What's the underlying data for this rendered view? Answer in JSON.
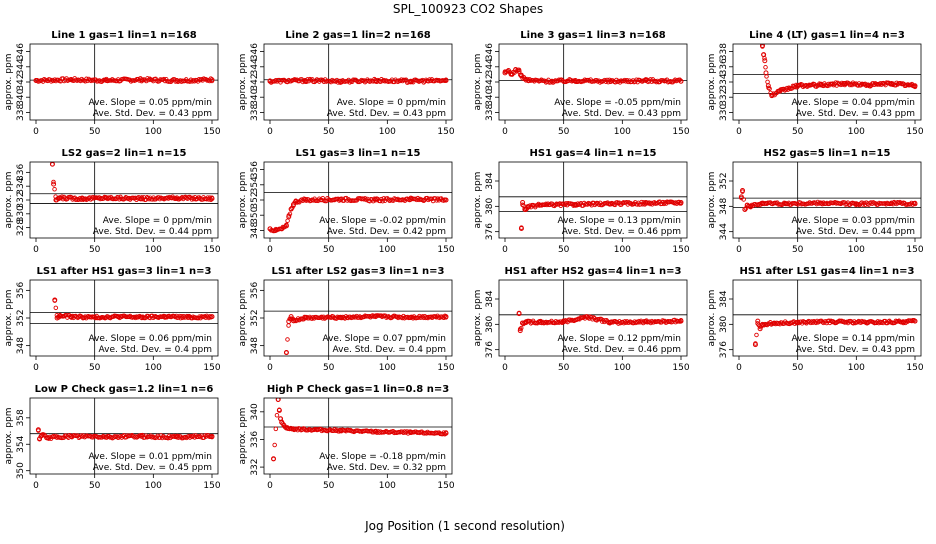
{
  "figure": {
    "title": "SPL_100923  CO2 Shapes",
    "xlabel": "Jog Position (1 second resolution)"
  },
  "colors": {
    "points": "#e00000",
    "axes": "#000000"
  },
  "chart_data": [
    {
      "type": "scatter",
      "title": "Line 1 gas=1 lin=1 n=168",
      "ylabel": "approx. ppm",
      "xlim": [
        0,
        150
      ],
      "ylim": [
        337,
        347
      ],
      "xticks": [
        0,
        50,
        100,
        150
      ],
      "yticks": [
        338,
        340,
        342,
        344,
        346
      ],
      "hlines": [
        342.25
      ],
      "vline": 50,
      "slope_label": "Ave. Slope = ",
      "slope": "0.05",
      "slope_unit": "ppm/min",
      "sd_label": "Ave. Std. Dev. = ",
      "sd": "0.43",
      "sd_unit": "ppm",
      "series": [
        {
          "x": [
            0,
            30,
            60,
            90,
            120,
            150
          ],
          "y": [
            342.2,
            342.3,
            342.2,
            342.3,
            342.2,
            342.3
          ]
        }
      ]
    },
    {
      "type": "scatter",
      "title": "Line 2 gas=1 lin=2 n=168",
      "ylabel": "approx. ppm",
      "xlim": [
        0,
        150
      ],
      "ylim": [
        337,
        347
      ],
      "xticks": [
        0,
        50,
        100,
        150
      ],
      "yticks": [
        338,
        340,
        342,
        344,
        346
      ],
      "hlines": [
        342.3
      ],
      "vline": 50,
      "slope_label": "Ave. Slope = ",
      "slope": "0",
      "slope_unit": "ppm/min",
      "sd_label": "Ave. Std. Dev. = ",
      "sd": "0.43",
      "sd_unit": "ppm",
      "series": [
        {
          "x": [
            0,
            30,
            60,
            90,
            120,
            150
          ],
          "y": [
            342.1,
            342.2,
            342.1,
            342.2,
            342.1,
            342.2
          ]
        }
      ]
    },
    {
      "type": "scatter",
      "title": "Line 3 gas=1 lin=3 n=168",
      "ylabel": "approx. ppm",
      "xlim": [
        0,
        150
      ],
      "ylim": [
        337,
        347
      ],
      "xticks": [
        0,
        50,
        100,
        150
      ],
      "yticks": [
        338,
        340,
        342,
        344,
        346
      ],
      "hlines": [
        342.2
      ],
      "vline": 50,
      "slope_label": "Ave. Slope = ",
      "slope": "-0.05",
      "slope_unit": "ppm/min",
      "sd_label": "Ave. Std. Dev. = ",
      "sd": "0.43",
      "sd_unit": "ppm",
      "series": [
        {
          "x": [
            0,
            3,
            6,
            9,
            12,
            14,
            17,
            20,
            40,
            60,
            90,
            120,
            150
          ],
          "y": [
            343.2,
            343.5,
            343.0,
            343.6,
            343.4,
            342.8,
            342.4,
            342.2,
            342.1,
            342.2,
            342.1,
            342.2,
            342.1
          ]
        }
      ]
    },
    {
      "type": "scatter",
      "title": "Line 4 (LT) gas=1 lin=4 n=3",
      "ylabel": "approx. ppm",
      "xlim": [
        0,
        150
      ],
      "ylim": [
        329,
        339
      ],
      "xticks": [
        0,
        50,
        100,
        150
      ],
      "yticks": [
        330,
        332,
        334,
        336,
        338
      ],
      "hlines": [
        335.0,
        332.5
      ],
      "vline": 50,
      "slope_label": "Ave. Slope = ",
      "slope": "0.04",
      "slope_unit": "ppm/min",
      "sd_label": "Ave. Std. Dev. = ",
      "sd": "0.43",
      "sd_unit": "ppm",
      "series": [
        {
          "x": [
            20,
            21,
            22,
            23,
            25,
            28,
            35,
            50,
            70,
            90,
            110,
            130,
            150
          ],
          "y": [
            338.8,
            337.6,
            336.8,
            335.2,
            333.5,
            332.2,
            332.8,
            333.5,
            333.6,
            333.8,
            333.6,
            333.8,
            333.5
          ]
        }
      ]
    },
    {
      "type": "scatter",
      "title": "LS2 gas=2 lin=1 n=15",
      "ylabel": "approx. ppm",
      "xlim": [
        0,
        150
      ],
      "ylim": [
        326.5,
        337.5
      ],
      "xticks": [
        0,
        50,
        100,
        150
      ],
      "yticks": [
        328,
        330,
        332,
        334,
        336
      ],
      "hlines": [
        332.9,
        331.5
      ],
      "vline": 50,
      "slope_label": "Ave. Slope = ",
      "slope": "0",
      "slope_unit": "ppm/min",
      "sd_label": "Ave. Std. Dev. = ",
      "sd": "0.44",
      "sd_unit": "ppm",
      "series": [
        {
          "x": [
            14,
            15,
            17,
            20,
            40,
            60,
            90,
            120,
            150
          ],
          "y": [
            337.2,
            334.3,
            332.0,
            332.3,
            332.2,
            332.3,
            332.2,
            332.3,
            332.2
          ]
        }
      ]
    },
    {
      "type": "scatter",
      "title": "LS1 gas=3 lin=1 n=15",
      "ylabel": "approx. ppm",
      "xlim": [
        0,
        150
      ],
      "ylim": [
        347,
        357
      ],
      "xticks": [
        0,
        50,
        100,
        150
      ],
      "yticks": [
        348,
        350,
        352,
        354,
        356
      ],
      "hlines": [
        353.0
      ],
      "vline": 50,
      "slope_label": "Ave. Slope = ",
      "slope": "-0.02",
      "slope_unit": "ppm/min",
      "sd_label": "Ave. Std. Dev. = ",
      "sd": "0.42",
      "sd_unit": "ppm",
      "series": [
        {
          "x": [
            0,
            5,
            10,
            14,
            16,
            18,
            20,
            22,
            30,
            60,
            90,
            120,
            150
          ],
          "y": [
            348.2,
            348.0,
            348.2,
            348.6,
            349.8,
            350.8,
            351.4,
            351.8,
            352.0,
            352.1,
            352.0,
            352.1,
            352.0
          ]
        }
      ]
    },
    {
      "type": "scatter",
      "title": "HS1 gas=4 lin=1 n=15",
      "ylabel": "approx. ppm",
      "xlim": [
        0,
        150
      ],
      "ylim": [
        375,
        387
      ],
      "xticks": [
        0,
        50,
        100,
        150
      ],
      "yticks": [
        376,
        380,
        384
      ],
      "hlines": [
        381.5,
        379.2
      ],
      "vline": 50,
      "slope_label": "Ave. Slope = ",
      "slope": "0.13",
      "slope_unit": "ppm/min",
      "sd_label": "Ave. Std. Dev. = ",
      "sd": "0.46",
      "sd_unit": "ppm",
      "series": [
        {
          "x": [
            14,
            15,
            17,
            20,
            30,
            60,
            90,
            120,
            150
          ],
          "y": [
            376.5,
            380.6,
            379.5,
            379.9,
            380.2,
            380.3,
            380.4,
            380.5,
            380.6
          ]
        }
      ]
    },
    {
      "type": "scatter",
      "title": "HS2 gas=5 lin=1 n=15",
      "ylabel": "approx. ppm",
      "xlim": [
        0,
        150
      ],
      "ylim": [
        343,
        355
      ],
      "xticks": [
        0,
        50,
        100,
        150
      ],
      "yticks": [
        344,
        348,
        352
      ],
      "hlines": [
        349.3,
        347.8
      ],
      "vline": 50,
      "slope_label": "Ave. Slope = ",
      "slope": "0.03",
      "slope_unit": "ppm/min",
      "sd_label": "Ave. Std. Dev. = ",
      "sd": "0.44",
      "sd_unit": "ppm",
      "series": [
        {
          "x": [
            2,
            3,
            5,
            7,
            10,
            20,
            40,
            70,
            100,
            130,
            150
          ],
          "y": [
            349.5,
            350.5,
            347.5,
            348.2,
            348.0,
            348.5,
            348.4,
            348.5,
            348.4,
            348.5,
            348.4
          ]
        }
      ]
    },
    {
      "type": "scatter",
      "title": "LS1 after HS1 gas=3 lin=1 n=3",
      "ylabel": "approx. ppm",
      "xlim": [
        0,
        150
      ],
      "ylim": [
        346.5,
        357.5
      ],
      "xticks": [
        0,
        50,
        100,
        150
      ],
      "yticks": [
        348,
        352,
        356
      ],
      "hlines": [
        352.8,
        351.2
      ],
      "vline": 50,
      "slope_label": "Ave. Slope = ",
      "slope": "0.06",
      "slope_unit": "ppm/min",
      "sd_label": "Ave. Std. Dev. = ",
      "sd": "0.4",
      "sd_unit": "ppm",
      "series": [
        {
          "x": [
            16,
            18,
            20,
            30,
            50,
            70,
            90,
            110,
            130,
            150
          ],
          "y": [
            354.6,
            352.0,
            352.3,
            352.2,
            352.1,
            352.2,
            352.1,
            352.2,
            352.1,
            352.2
          ]
        }
      ]
    },
    {
      "type": "scatter",
      "title": "LS1 after LS2 gas=3 lin=1 n=3",
      "ylabel": "approx. ppm",
      "xlim": [
        0,
        150
      ],
      "ylim": [
        346.5,
        357.5
      ],
      "xticks": [
        0,
        50,
        100,
        150
      ],
      "yticks": [
        348,
        352,
        356
      ],
      "hlines": [
        353.0
      ],
      "vline": 50,
      "slope_label": "Ave. Slope = ",
      "slope": "0.07",
      "slope_unit": "ppm/min",
      "sd_label": "Ave. Std. Dev. = ",
      "sd": "0.4",
      "sd_unit": "ppm",
      "series": [
        {
          "x": [
            14,
            16,
            18,
            20,
            30,
            60,
            90,
            120,
            150
          ],
          "y": [
            347.0,
            351.5,
            352.2,
            351.6,
            352.0,
            352.1,
            352.2,
            352.1,
            352.2
          ]
        }
      ]
    },
    {
      "type": "scatter",
      "title": "HS1 after HS2 gas=4 lin=1 n=3",
      "ylabel": "approx. ppm",
      "xlim": [
        0,
        150
      ],
      "ylim": [
        375,
        387
      ],
      "xticks": [
        0,
        50,
        100,
        150
      ],
      "yticks": [
        376,
        380,
        384
      ],
      "hlines": [
        381.5
      ],
      "vline": 50,
      "slope_label": "Ave. Slope = ",
      "slope": "0.12",
      "slope_unit": "ppm/min",
      "sd_label": "Ave. Std. Dev. = ",
      "sd": "0.46",
      "sd_unit": "ppm",
      "series": [
        {
          "x": [
            12,
            13,
            15,
            18,
            30,
            50,
            70,
            90,
            120,
            150
          ],
          "y": [
            381.7,
            379.0,
            380.2,
            380.4,
            380.3,
            380.4,
            381.2,
            380.3,
            380.4,
            380.5
          ]
        }
      ]
    },
    {
      "type": "scatter",
      "title": "HS1 after LS1 gas=4 lin=1 n=3",
      "ylabel": "approx. ppm",
      "xlim": [
        0,
        150
      ],
      "ylim": [
        375,
        387
      ],
      "xticks": [
        0,
        50,
        100,
        150
      ],
      "yticks": [
        376,
        380,
        384
      ],
      "hlines": [
        381.5
      ],
      "vline": 50,
      "slope_label": "Ave. Slope = ",
      "slope": "0.14",
      "slope_unit": "ppm/min",
      "sd_label": "Ave. Std. Dev. = ",
      "sd": "0.43",
      "sd_unit": "ppm",
      "series": [
        {
          "x": [
            14,
            16,
            18,
            20,
            30,
            50,
            80,
            110,
            140,
            150
          ],
          "y": [
            376.8,
            380.5,
            379.3,
            380.0,
            380.2,
            380.3,
            380.4,
            380.3,
            380.4,
            380.5
          ]
        }
      ]
    },
    {
      "type": "scatter",
      "title": "Low P Check gas=1.2 lin=1 n=6",
      "ylabel": "approx. ppm",
      "xlim": [
        0,
        150
      ],
      "ylim": [
        349.5,
        361
      ],
      "xticks": [
        0,
        50,
        100,
        150
      ],
      "yticks": [
        350,
        354,
        358
      ],
      "hlines": [
        355.6
      ],
      "vline": 50,
      "slope_label": "Ave. Slope = ",
      "slope": "0.01",
      "slope_unit": "ppm/min",
      "sd_label": "Ave. Std. Dev. = ",
      "sd": "0.45",
      "sd_unit": "ppm",
      "series": [
        {
          "x": [
            2,
            3,
            5,
            10,
            30,
            60,
            90,
            120,
            150
          ],
          "y": [
            356.2,
            354.8,
            355.4,
            355.0,
            355.2,
            355.1,
            355.2,
            355.1,
            355.2
          ]
        }
      ]
    },
    {
      "type": "scatter",
      "title": "High P Check gas=1 lin=0.8 n=3",
      "ylabel": "approx. ppm",
      "xlim": [
        0,
        150
      ],
      "ylim": [
        331,
        342
      ],
      "xticks": [
        0,
        50,
        100,
        150
      ],
      "yticks": [
        332,
        336,
        340
      ],
      "hlines": [
        337.8
      ],
      "vline": 50,
      "slope_label": "Ave. Slope = ",
      "slope": "-0.18",
      "slope_unit": "ppm/min",
      "sd_label": "Ave. Std. Dev. = ",
      "sd": "0.32",
      "sd_unit": "ppm",
      "series": [
        {
          "x": [
            3,
            7,
            8,
            9,
            10,
            12,
            15,
            20,
            40,
            60,
            90,
            120,
            150
          ],
          "y": [
            333.2,
            341.8,
            340.2,
            339.0,
            338.5,
            338.0,
            337.6,
            337.5,
            337.4,
            337.3,
            337.1,
            337.0,
            336.9
          ]
        }
      ]
    }
  ]
}
